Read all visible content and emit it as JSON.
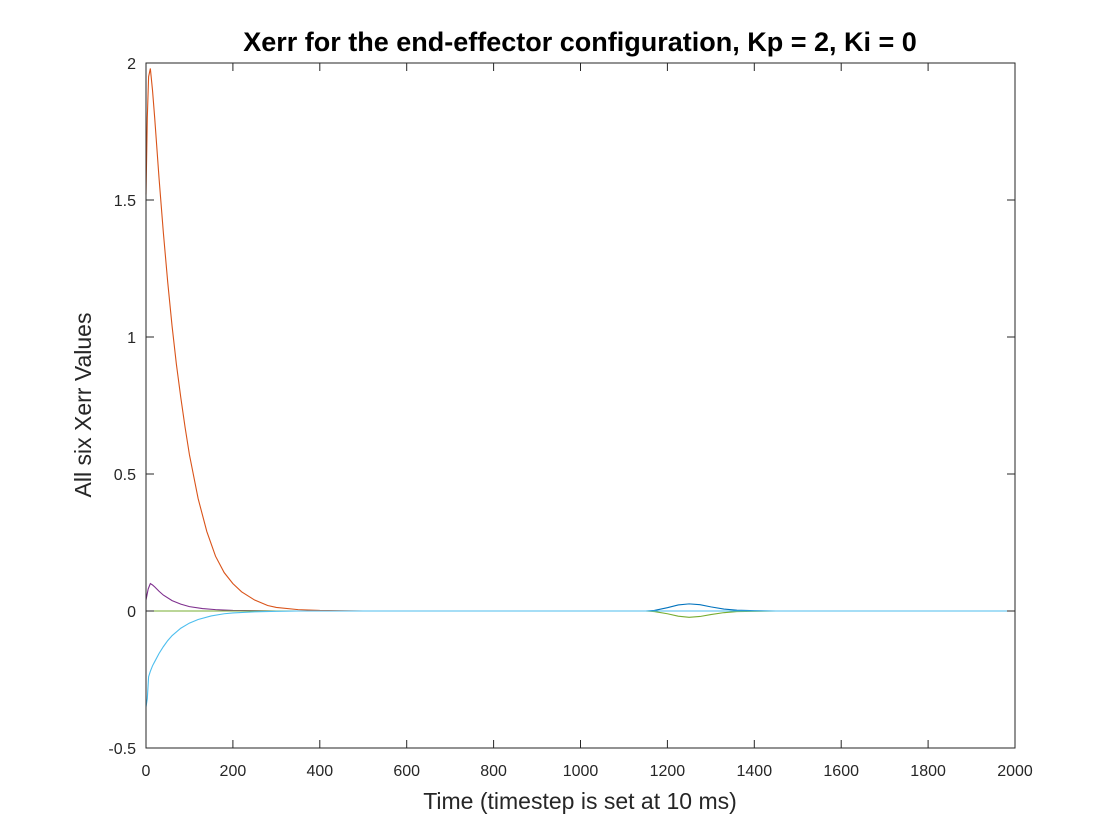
{
  "chart_data": {
    "type": "line",
    "title": "Xerr for the end-effector configuration, Kp = 2, Ki = 0",
    "xlabel": "Time (timestep is set at 10 ms)",
    "ylabel": "All six Xerr Values",
    "xlim": [
      0,
      2000
    ],
    "ylim": [
      -0.5,
      2
    ],
    "xticks": [
      0,
      200,
      400,
      600,
      800,
      1000,
      1200,
      1400,
      1600,
      1800,
      2000
    ],
    "yticks": [
      -0.5,
      0,
      0.5,
      1,
      1.5,
      2
    ],
    "xtick_labels": [
      "0",
      "200",
      "400",
      "600",
      "800",
      "1000",
      "1200",
      "1400",
      "1600",
      "1800",
      "2000"
    ],
    "ytick_labels": [
      "-0.5",
      "0",
      "0.5",
      "1",
      "1.5",
      "2"
    ],
    "grid": false,
    "legend": "none",
    "series": [
      {
        "color": "#0072BD",
        "x": [
          0,
          200,
          400,
          1150,
          1170,
          1200,
          1225,
          1250,
          1275,
          1300,
          1330,
          1360,
          1400,
          1450,
          2000
        ],
        "y": [
          0,
          0,
          0,
          0,
          0.002,
          0.012,
          0.022,
          0.026,
          0.023,
          0.015,
          0.007,
          0.003,
          0.001,
          0,
          0
        ]
      },
      {
        "color": "#D95319",
        "x": [
          0,
          3,
          6,
          10,
          15,
          20,
          30,
          40,
          50,
          60,
          70,
          80,
          90,
          100,
          120,
          140,
          160,
          180,
          200,
          220,
          250,
          280,
          300,
          350,
          400,
          500,
          2000
        ],
        "y": [
          1.52,
          1.8,
          1.95,
          1.98,
          1.9,
          1.8,
          1.58,
          1.38,
          1.2,
          1.04,
          0.9,
          0.78,
          0.67,
          0.57,
          0.41,
          0.29,
          0.2,
          0.14,
          0.1,
          0.07,
          0.04,
          0.02,
          0.013,
          0.005,
          0.002,
          0,
          0
        ]
      },
      {
        "color": "#EDB120",
        "x": [
          0,
          200,
          400,
          2000
        ],
        "y": [
          0,
          0,
          0,
          0
        ]
      },
      {
        "color": "#7E2F8E",
        "x": [
          0,
          5,
          10,
          15,
          20,
          30,
          40,
          60,
          80,
          100,
          130,
          160,
          200,
          250,
          300,
          2000
        ],
        "y": [
          0.04,
          0.08,
          0.1,
          0.095,
          0.088,
          0.072,
          0.058,
          0.038,
          0.025,
          0.016,
          0.009,
          0.005,
          0.002,
          0.001,
          0,
          0
        ]
      },
      {
        "color": "#77AC30",
        "x": [
          0,
          1150,
          1170,
          1200,
          1225,
          1250,
          1275,
          1300,
          1330,
          1360,
          1400,
          1450,
          2000
        ],
        "y": [
          0,
          0,
          -0.002,
          -0.01,
          -0.019,
          -0.023,
          -0.02,
          -0.013,
          -0.006,
          -0.002,
          -0.001,
          0,
          0
        ]
      },
      {
        "color": "#4DBEEE",
        "x": [
          0,
          3,
          6,
          10,
          15,
          20,
          30,
          40,
          50,
          60,
          80,
          100,
          120,
          150,
          180,
          200,
          250,
          300,
          350,
          2000
        ],
        "y": [
          -0.35,
          -0.32,
          -0.24,
          -0.22,
          -0.2,
          -0.185,
          -0.155,
          -0.13,
          -0.108,
          -0.09,
          -0.063,
          -0.044,
          -0.031,
          -0.018,
          -0.01,
          -0.007,
          -0.003,
          -0.001,
          0,
          0
        ]
      }
    ]
  }
}
